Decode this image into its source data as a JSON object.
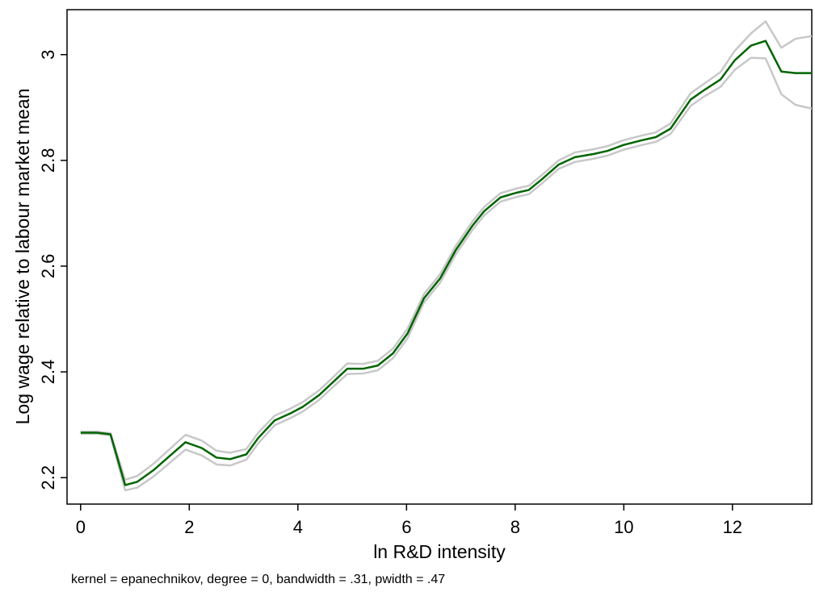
{
  "chart_data": {
    "type": "line",
    "y_label": "Log wage relative to labour market mean",
    "x_label": "ln R&D intensity",
    "note": "kernel = epanechnikov, degree = 0, bandwidth = .31, pwidth = .47",
    "x": [
      0,
      0.3,
      0.55,
      0.82,
      1.04,
      1.34,
      1.64,
      1.93,
      2.23,
      2.5,
      2.75,
      3.05,
      3.27,
      3.57,
      3.87,
      4.09,
      4.39,
      4.64,
      4.91,
      5.2,
      5.47,
      5.75,
      6.02,
      6.32,
      6.62,
      6.91,
      7.21,
      7.43,
      7.73,
      8.03,
      8.25,
      8.5,
      8.8,
      9.1,
      9.44,
      9.7,
      9.99,
      10.33,
      10.59,
      10.86,
      11.23,
      11.48,
      11.78,
      12.04,
      12.34,
      12.61,
      12.9,
      13.16,
      13.46
    ],
    "series": [
      {
        "color": "#c8c8c8",
        "values": [
          2.287,
          2.287,
          2.284,
          2.196,
          2.203,
          2.226,
          2.254,
          2.281,
          2.27,
          2.251,
          2.247,
          2.254,
          2.285,
          2.317,
          2.331,
          2.343,
          2.365,
          2.389,
          2.416,
          2.415,
          2.421,
          2.444,
          2.482,
          2.547,
          2.585,
          2.639,
          2.684,
          2.712,
          2.738,
          2.747,
          2.752,
          2.773,
          2.8,
          2.815,
          2.821,
          2.827,
          2.838,
          2.847,
          2.853,
          2.87,
          2.927,
          2.945,
          2.967,
          3.007,
          3.04,
          3.063,
          3.013,
          3.03,
          3.035
        ]
      },
      {
        "color": "#c8c8c8",
        "values": [
          2.283,
          2.283,
          2.28,
          2.176,
          2.181,
          2.202,
          2.228,
          2.253,
          2.242,
          2.225,
          2.223,
          2.234,
          2.265,
          2.299,
          2.313,
          2.325,
          2.347,
          2.371,
          2.396,
          2.397,
          2.403,
          2.426,
          2.464,
          2.531,
          2.569,
          2.623,
          2.668,
          2.696,
          2.722,
          2.731,
          2.736,
          2.757,
          2.784,
          2.797,
          2.803,
          2.809,
          2.82,
          2.829,
          2.835,
          2.85,
          2.903,
          2.921,
          2.939,
          2.971,
          2.994,
          2.993,
          2.925,
          2.905,
          2.898
        ]
      },
      {
        "color": "#006400",
        "values": [
          2.285,
          2.285,
          2.282,
          2.186,
          2.192,
          2.214,
          2.241,
          2.267,
          2.256,
          2.238,
          2.235,
          2.244,
          2.275,
          2.308,
          2.322,
          2.334,
          2.356,
          2.38,
          2.406,
          2.406,
          2.412,
          2.435,
          2.473,
          2.539,
          2.577,
          2.631,
          2.676,
          2.704,
          2.73,
          2.739,
          2.744,
          2.765,
          2.792,
          2.806,
          2.812,
          2.818,
          2.829,
          2.838,
          2.844,
          2.86,
          2.915,
          2.933,
          2.953,
          2.989,
          3.017,
          3.026,
          2.968,
          2.965,
          2.965
        ]
      }
    ],
    "xlim": [
      -0.25,
      13.46
    ],
    "ylim": [
      2.15,
      3.085
    ],
    "xticks": [
      0,
      2,
      4,
      6,
      8,
      10,
      12
    ],
    "yticks": [
      2.2,
      2.4,
      2.6,
      2.8,
      3
    ],
    "grid": false
  }
}
